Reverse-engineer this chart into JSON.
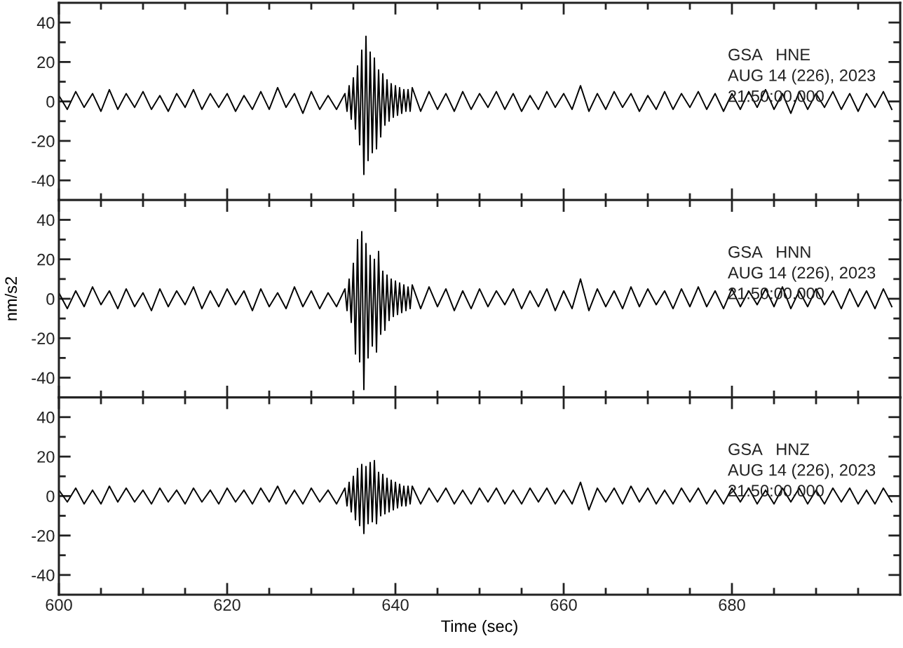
{
  "chart_data": [
    {
      "type": "line",
      "annotations": [
        "GSA   HNE",
        "AUG 14 (226), 2023",
        "21:50:00.000"
      ],
      "tick_labels": "y",
      "xlim": [
        600,
        700
      ],
      "ylim": [
        -50,
        50
      ],
      "xticks": [
        600,
        {
          "value": 605,
          "label": null
        },
        {
          "value": 610,
          "label": null
        },
        {
          "value": 615,
          "label": null
        },
        620,
        {
          "value": 625,
          "label": null
        },
        {
          "value": 630,
          "label": null
        },
        {
          "value": 635,
          "label": null
        },
        640,
        {
          "value": 645,
          "label": null
        },
        {
          "value": 650,
          "label": null
        },
        {
          "value": 655,
          "label": null
        },
        660,
        {
          "value": 665,
          "label": null
        },
        {
          "value": 670,
          "label": null
        },
        {
          "value": 675,
          "label": null
        },
        680,
        {
          "value": 685,
          "label": null
        },
        {
          "value": 690,
          "label": null
        },
        {
          "value": 695,
          "label": null
        }
      ],
      "yticks": [
        -40,
        {
          "value": -30,
          "label": null
        },
        -20,
        {
          "value": -10,
          "label": null
        },
        0,
        {
          "value": 10,
          "label": null
        },
        20,
        {
          "value": 30,
          "label": null
        },
        40
      ],
      "x": [
        600,
        601,
        602,
        603,
        604,
        605,
        606,
        607,
        608,
        609,
        610,
        611,
        612,
        613,
        614,
        615,
        616,
        617,
        618,
        619,
        620,
        621,
        622,
        623,
        624,
        625,
        626,
        627,
        628,
        629,
        630,
        631,
        632,
        633,
        634,
        634.25,
        634.5,
        634.75,
        635,
        635.25,
        635.5,
        635.75,
        636,
        636.25,
        636.5,
        636.75,
        637,
        637.25,
        637.5,
        637.75,
        638,
        638.25,
        638.5,
        638.75,
        639,
        639.25,
        639.5,
        639.75,
        640,
        640.25,
        640.5,
        640.75,
        641,
        641.25,
        641.5,
        641.75,
        642,
        643,
        644,
        645,
        646,
        647,
        648,
        649,
        650,
        651,
        652,
        653,
        654,
        655,
        656,
        657,
        658,
        659,
        660,
        661,
        662,
        663,
        664,
        665,
        666,
        667,
        668,
        669,
        670,
        671,
        672,
        673,
        674,
        675,
        676,
        677,
        678,
        679,
        680,
        681,
        682,
        683,
        684,
        685,
        686,
        687,
        688,
        689,
        690,
        691,
        692,
        693,
        694,
        695,
        696,
        697,
        698,
        699
      ],
      "series": [
        {
          "color": "#000000",
          "values": [
            3,
            -4,
            5,
            -3,
            4,
            -5,
            6,
            -4,
            4,
            -3,
            5,
            -4,
            3,
            -5,
            4,
            -3,
            6,
            -4,
            4,
            -3,
            4,
            -5,
            3,
            -4,
            5,
            -4,
            7,
            -3,
            4,
            -6,
            5,
            -4,
            3,
            -4,
            4,
            -5,
            8,
            -9,
            12,
            -14,
            18,
            -22,
            26,
            -37,
            33,
            -30,
            25,
            -26,
            22,
            -24,
            16,
            -18,
            14,
            -12,
            11,
            -10,
            9,
            -8,
            8,
            -7,
            7,
            -6,
            6,
            -5,
            6,
            -5,
            7,
            -5,
            5,
            -4,
            4,
            -5,
            5,
            -4,
            4,
            -3,
            5,
            -4,
            4,
            -5,
            3,
            -4,
            5,
            -3,
            4,
            -4,
            8,
            -5,
            4,
            -4,
            5,
            -3,
            4,
            -5,
            3,
            -4,
            5,
            -4,
            4,
            -3,
            5,
            -4,
            4,
            -5,
            4,
            -4,
            5,
            -3,
            6,
            -4,
            4,
            -6,
            5,
            -4,
            4,
            -3,
            5,
            -4,
            4,
            -5,
            4,
            -3,
            5,
            -4
          ]
        }
      ]
    },
    {
      "type": "line",
      "ylabel": "nm/s2",
      "annotations": [
        "GSA   HNN",
        "AUG 14 (226), 2023",
        "21:50:00.000"
      ],
      "tick_labels": "y",
      "xlim": [
        600,
        700
      ],
      "ylim": [
        -50,
        50
      ],
      "xticks": [
        600,
        {
          "value": 605,
          "label": null
        },
        {
          "value": 610,
          "label": null
        },
        {
          "value": 615,
          "label": null
        },
        620,
        {
          "value": 625,
          "label": null
        },
        {
          "value": 630,
          "label": null
        },
        {
          "value": 635,
          "label": null
        },
        640,
        {
          "value": 645,
          "label": null
        },
        {
          "value": 650,
          "label": null
        },
        {
          "value": 655,
          "label": null
        },
        660,
        {
          "value": 665,
          "label": null
        },
        {
          "value": 670,
          "label": null
        },
        {
          "value": 675,
          "label": null
        },
        680,
        {
          "value": 685,
          "label": null
        },
        {
          "value": 690,
          "label": null
        },
        {
          "value": 695,
          "label": null
        }
      ],
      "yticks": [
        -40,
        {
          "value": -30,
          "label": null
        },
        -20,
        {
          "value": -10,
          "label": null
        },
        0,
        {
          "value": 10,
          "label": null
        },
        20,
        {
          "value": 30,
          "label": null
        },
        40
      ],
      "x": [
        600,
        601,
        602,
        603,
        604,
        605,
        606,
        607,
        608,
        609,
        610,
        611,
        612,
        613,
        614,
        615,
        616,
        617,
        618,
        619,
        620,
        621,
        622,
        623,
        624,
        625,
        626,
        627,
        628,
        629,
        630,
        631,
        632,
        633,
        634,
        634.25,
        634.5,
        634.75,
        635,
        635.25,
        635.5,
        635.75,
        636,
        636.25,
        636.5,
        636.75,
        637,
        637.25,
        637.5,
        637.75,
        638,
        638.25,
        638.5,
        638.75,
        639,
        639.25,
        639.5,
        639.75,
        640,
        640.25,
        640.5,
        640.75,
        641,
        641.25,
        641.5,
        641.75,
        642,
        643,
        644,
        645,
        646,
        647,
        648,
        649,
        650,
        651,
        652,
        653,
        654,
        655,
        656,
        657,
        658,
        659,
        660,
        661,
        662,
        663,
        664,
        665,
        666,
        667,
        668,
        669,
        670,
        671,
        672,
        673,
        674,
        675,
        676,
        677,
        678,
        679,
        680,
        681,
        682,
        683,
        684,
        685,
        686,
        687,
        688,
        689,
        690,
        691,
        692,
        693,
        694,
        695,
        696,
        697,
        698,
        699
      ],
      "series": [
        {
          "color": "#000000",
          "values": [
            3,
            -5,
            4,
            -4,
            6,
            -3,
            4,
            -5,
            5,
            -4,
            3,
            -6,
            5,
            -4,
            4,
            -3,
            6,
            -5,
            4,
            -4,
            5,
            -3,
            4,
            -6,
            5,
            -4,
            3,
            -5,
            6,
            -4,
            4,
            -5,
            3,
            -4,
            5,
            -6,
            10,
            -12,
            18,
            -28,
            30,
            -32,
            34,
            -46,
            28,
            -30,
            22,
            -24,
            20,
            -27,
            24,
            -18,
            14,
            -16,
            12,
            -11,
            10,
            -9,
            9,
            -8,
            8,
            -7,
            7,
            -6,
            6,
            -5,
            7,
            -5,
            6,
            -4,
            5,
            -6,
            4,
            -5,
            5,
            -4,
            4,
            -3,
            5,
            -5,
            4,
            -4,
            5,
            -6,
            4,
            -5,
            10,
            -6,
            5,
            -4,
            4,
            -5,
            6,
            -4,
            5,
            -3,
            4,
            -5,
            5,
            -4,
            6,
            -4,
            4,
            -5,
            5,
            -4,
            4,
            -3,
            5,
            -4,
            6,
            -5,
            4,
            -4,
            5,
            -3,
            4,
            -5,
            5,
            -4,
            4,
            -5,
            5,
            -4
          ]
        }
      ]
    },
    {
      "type": "line",
      "xlabel": "Time (sec)",
      "annotations": [
        "GSA   HNZ",
        "AUG 14 (226), 2023",
        "21:50:00.000"
      ],
      "xlim": [
        600,
        700
      ],
      "ylim": [
        -50,
        50
      ],
      "xticks": [
        600,
        {
          "value": 605,
          "label": null
        },
        {
          "value": 610,
          "label": null
        },
        {
          "value": 615,
          "label": null
        },
        620,
        {
          "value": 625,
          "label": null
        },
        {
          "value": 630,
          "label": null
        },
        {
          "value": 635,
          "label": null
        },
        640,
        {
          "value": 645,
          "label": null
        },
        {
          "value": 650,
          "label": null
        },
        {
          "value": 655,
          "label": null
        },
        660,
        {
          "value": 665,
          "label": null
        },
        {
          "value": 670,
          "label": null
        },
        {
          "value": 675,
          "label": null
        },
        680,
        {
          "value": 685,
          "label": null
        },
        {
          "value": 690,
          "label": null
        },
        {
          "value": 695,
          "label": null
        }
      ],
      "yticks": [
        -40,
        {
          "value": -30,
          "label": null
        },
        -20,
        {
          "value": -10,
          "label": null
        },
        0,
        {
          "value": 10,
          "label": null
        },
        20,
        {
          "value": 30,
          "label": null
        },
        40
      ],
      "x": [
        600,
        601,
        602,
        603,
        604,
        605,
        606,
        607,
        608,
        609,
        610,
        611,
        612,
        613,
        614,
        615,
        616,
        617,
        618,
        619,
        620,
        621,
        622,
        623,
        624,
        625,
        626,
        627,
        628,
        629,
        630,
        631,
        632,
        633,
        634,
        634.25,
        634.5,
        634.75,
        635,
        635.25,
        635.5,
        635.75,
        636,
        636.25,
        636.5,
        636.75,
        637,
        637.25,
        637.5,
        637.75,
        638,
        638.25,
        638.5,
        638.75,
        639,
        639.25,
        639.5,
        639.75,
        640,
        640.25,
        640.5,
        640.75,
        641,
        641.25,
        641.5,
        641.75,
        642,
        643,
        644,
        645,
        646,
        647,
        648,
        649,
        650,
        651,
        652,
        653,
        654,
        655,
        656,
        657,
        658,
        659,
        660,
        661,
        662,
        663,
        664,
        665,
        666,
        667,
        668,
        669,
        670,
        671,
        672,
        673,
        674,
        675,
        676,
        677,
        678,
        679,
        680,
        681,
        682,
        683,
        684,
        685,
        686,
        687,
        688,
        689,
        690,
        691,
        692,
        693,
        694,
        695,
        696,
        697,
        698,
        699
      ],
      "series": [
        {
          "color": "#000000",
          "values": [
            3,
            -3,
            4,
            -4,
            3,
            -4,
            5,
            -3,
            4,
            -3,
            3,
            -4,
            4,
            -3,
            3,
            -4,
            4,
            -3,
            3,
            -4,
            4,
            -3,
            3,
            -4,
            4,
            -3,
            5,
            -4,
            3,
            -4,
            4,
            -3,
            3,
            -4,
            4,
            -5,
            7,
            -8,
            10,
            -12,
            14,
            -15,
            16,
            -19,
            15,
            -14,
            17,
            -13,
            18,
            -14,
            12,
            -10,
            11,
            -9,
            9,
            -8,
            8,
            -7,
            7,
            -6,
            6,
            -5,
            5,
            -5,
            5,
            -4,
            5,
            -4,
            4,
            -3,
            4,
            -4,
            3,
            -4,
            4,
            -3,
            4,
            -4,
            3,
            -4,
            4,
            -3,
            4,
            -4,
            3,
            -4,
            7,
            -7,
            4,
            -3,
            4,
            -4,
            5,
            -3,
            4,
            -4,
            3,
            -4,
            4,
            -3,
            4,
            -4,
            3,
            -4,
            4,
            -3,
            4,
            -4,
            3,
            -4,
            4,
            -3,
            4,
            -4,
            3,
            -4,
            4,
            -3,
            4,
            -4,
            3,
            -4,
            4,
            -3
          ]
        }
      ]
    }
  ]
}
